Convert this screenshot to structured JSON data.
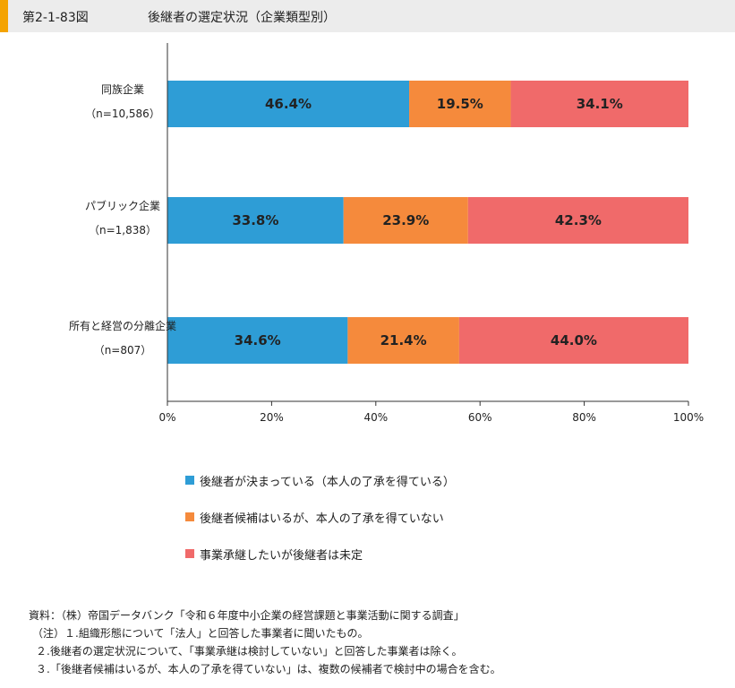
{
  "header": {
    "figure_number": "第2-1-83図",
    "title": "後継者の選定状況（企業類型別）"
  },
  "colors": {
    "decided": "#2e9dd6",
    "candidate": "#f58a3c",
    "undecided": "#f06a6a",
    "accent": "#f4a300"
  },
  "chart_data": {
    "type": "bar",
    "orientation": "horizontal",
    "stacked": true,
    "percent": true,
    "categories": [
      {
        "name": "同族企業",
        "n": "（n=10,586）"
      },
      {
        "name": "パブリック企業",
        "n": "（n=1,838）"
      },
      {
        "name": "所有と経営の分離企業",
        "n": "（n=807）"
      }
    ],
    "series": [
      {
        "name": "後継者が決まっている（本人の了承を得ている）",
        "values": [
          46.4,
          33.8,
          34.6
        ],
        "labels": [
          "46.4%",
          "33.8%",
          "34.6%"
        ]
      },
      {
        "name": "後継者候補はいるが、本人の了承を得ていない",
        "values": [
          19.5,
          23.9,
          21.4
        ],
        "labels": [
          "19.5%",
          "23.9%",
          "21.4%"
        ]
      },
      {
        "name": "事業承継したいが後継者は未定",
        "values": [
          34.1,
          42.3,
          44.0
        ],
        "labels": [
          "34.1%",
          "42.3%",
          "44.0%"
        ]
      }
    ],
    "xlim": [
      0,
      100
    ],
    "xticks": [
      "0%",
      "20%",
      "40%",
      "60%",
      "80%",
      "100%"
    ],
    "legend_position": "bottom",
    "grid": false
  },
  "notes": {
    "source": "資料：（株）帝国データバンク「令和６年度中小企業の経営課題と事業活動に関する調査」",
    "note1": "（注）１.組織形態について「法人」と回答した事業者に聞いたもの。",
    "note2": "２.後継者の選定状況について、「事業承継は検討していない」と回答した事業者は除く。",
    "note3": "３.「後継者候補はいるが、本人の了承を得ていない」は、複数の候補者で検討中の場合を含む。"
  }
}
